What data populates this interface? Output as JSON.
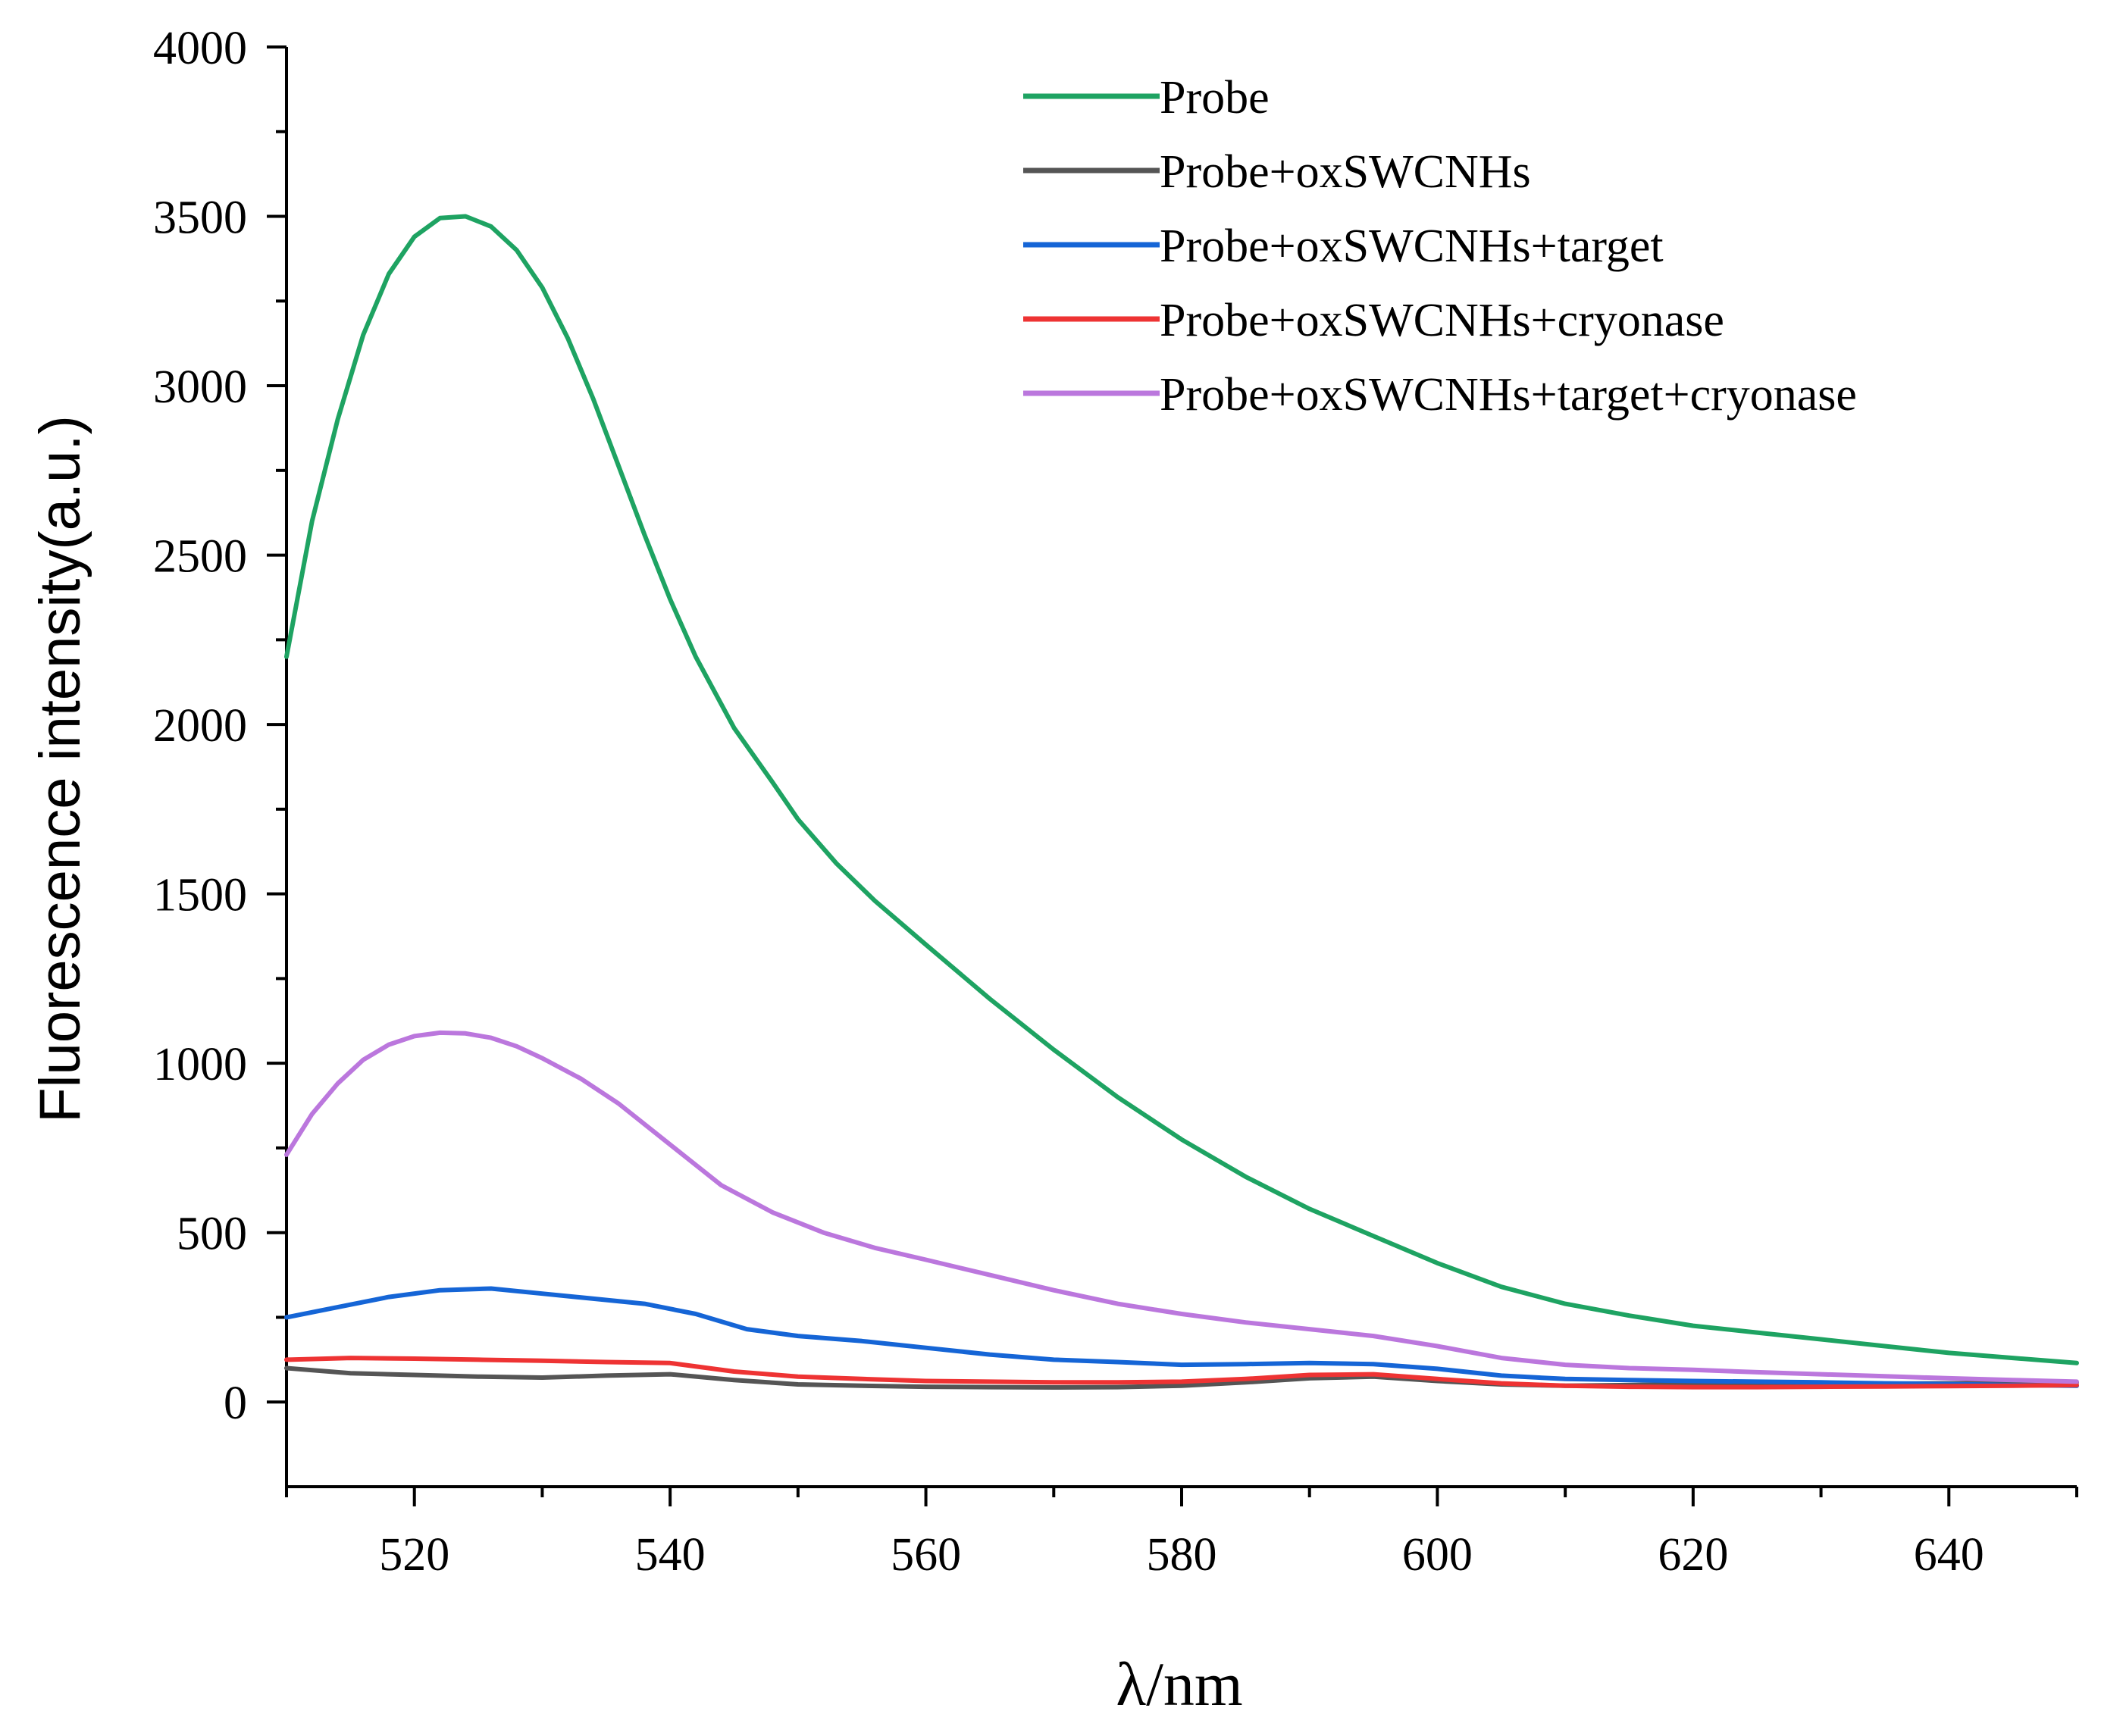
{
  "chart_data": {
    "type": "line",
    "title": "",
    "xlabel": "λ/nm",
    "ylabel": "Fluorescence intensity(a.u.)",
    "xlim": [
      510,
      650
    ],
    "ylim": [
      -250,
      4000
    ],
    "x_ticks": [
      520,
      540,
      560,
      580,
      600,
      620,
      640
    ],
    "y_ticks": [
      0,
      500,
      1000,
      1500,
      2000,
      2500,
      3000,
      3500,
      4000
    ],
    "grid": false,
    "legend_position": "top-right",
    "series": [
      {
        "name": "Probe",
        "color": "#1ea362",
        "x": [
          510,
          512,
          514,
          516,
          518,
          520,
          522,
          524,
          526,
          528,
          530,
          532,
          534,
          536,
          538,
          540,
          542,
          545,
          548,
          550,
          553,
          556,
          560,
          565,
          570,
          575,
          580,
          585,
          590,
          595,
          600,
          605,
          610,
          615,
          620,
          625,
          630,
          635,
          640,
          645,
          650
        ],
        "values": [
          2200,
          2600,
          2900,
          3150,
          3330,
          3440,
          3495,
          3500,
          3470,
          3400,
          3290,
          3140,
          2960,
          2760,
          2560,
          2370,
          2200,
          1990,
          1830,
          1720,
          1590,
          1480,
          1350,
          1190,
          1040,
          900,
          775,
          665,
          570,
          490,
          410,
          340,
          290,
          255,
          225,
          205,
          185,
          165,
          145,
          130,
          115
        ]
      },
      {
        "name": "Probe+oxSWCNHs",
        "color": "#555555",
        "x": [
          510,
          515,
          520,
          525,
          530,
          535,
          540,
          545,
          550,
          555,
          560,
          565,
          570,
          575,
          580,
          585,
          590,
          595,
          600,
          605,
          610,
          615,
          620,
          625,
          630,
          635,
          640,
          645,
          650
        ],
        "values": [
          100,
          85,
          80,
          75,
          72,
          78,
          82,
          65,
          52,
          48,
          45,
          44,
          43,
          44,
          48,
          58,
          70,
          75,
          62,
          52,
          48,
          50,
          52,
          53,
          53,
          54,
          55,
          56,
          58
        ]
      },
      {
        "name": "Probe+oxSWCNHs+target",
        "color": "#1565d6",
        "x": [
          510,
          514,
          518,
          522,
          526,
          530,
          534,
          538,
          542,
          546,
          550,
          555,
          560,
          565,
          570,
          575,
          580,
          585,
          590,
          595,
          600,
          605,
          610,
          615,
          620,
          625,
          630,
          635,
          640,
          645,
          650
        ],
        "values": [
          250,
          280,
          310,
          330,
          335,
          320,
          305,
          290,
          260,
          215,
          195,
          180,
          160,
          140,
          125,
          118,
          110,
          112,
          115,
          112,
          98,
          78,
          68,
          65,
          62,
          60,
          58,
          55,
          53,
          50,
          48
        ]
      },
      {
        "name": "Probe+oxSWCNHs+cryonase",
        "color": "#ee3333",
        "x": [
          510,
          515,
          520,
          525,
          530,
          535,
          540,
          545,
          550,
          555,
          560,
          565,
          570,
          575,
          580,
          585,
          590,
          595,
          600,
          605,
          610,
          615,
          620,
          625,
          630,
          635,
          640,
          645,
          650
        ],
        "values": [
          125,
          130,
          128,
          125,
          122,
          118,
          115,
          90,
          75,
          68,
          62,
          60,
          58,
          58,
          60,
          68,
          80,
          82,
          68,
          55,
          48,
          45,
          44,
          44,
          45,
          46,
          47,
          48,
          50
        ]
      },
      {
        "name": "Probe+oxSWCNHs+target+cryonase",
        "color": "#bb77dd",
        "x": [
          510,
          512,
          514,
          516,
          518,
          520,
          522,
          524,
          526,
          528,
          530,
          533,
          536,
          540,
          544,
          548,
          552,
          556,
          560,
          565,
          570,
          575,
          580,
          585,
          590,
          595,
          600,
          605,
          610,
          615,
          620,
          625,
          630,
          635,
          640,
          645,
          650
        ],
        "values": [
          730,
          850,
          940,
          1010,
          1055,
          1080,
          1090,
          1088,
          1075,
          1050,
          1015,
          955,
          880,
          760,
          640,
          560,
          500,
          455,
          420,
          375,
          330,
          290,
          260,
          235,
          215,
          195,
          165,
          130,
          110,
          100,
          95,
          88,
          82,
          76,
          70,
          65,
          60
        ]
      }
    ]
  }
}
